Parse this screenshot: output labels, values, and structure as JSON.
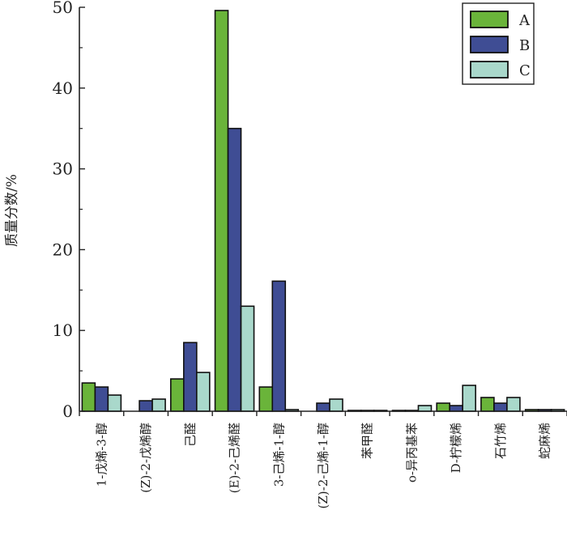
{
  "chart_data": {
    "type": "bar",
    "ylabel": "质量分数/%",
    "ylim": [
      0,
      50
    ],
    "yticks": [
      0,
      10,
      20,
      30,
      40,
      50
    ],
    "legend_position": "top-right",
    "categories": [
      "1-戊烯-3-醇",
      "(Z)-2-戊烯醇",
      "己醛",
      "(E)-2-己烯醛",
      "3-己烯-1-醇",
      "(Z)-2-己烯-1-醇",
      "苯甲醛",
      "o-异丙基苯",
      "D-柠檬烯",
      "石竹烯",
      "蛇麻烯"
    ],
    "series": [
      {
        "name": "A",
        "color": "#6ab43a",
        "values": [
          3.5,
          0,
          4.0,
          49.6,
          3.0,
          0,
          0.1,
          0.1,
          1.0,
          1.7,
          0.2
        ]
      },
      {
        "name": "B",
        "color": "#3f4d94",
        "values": [
          3.0,
          1.3,
          8.5,
          35.0,
          16.1,
          1.0,
          0.1,
          0.1,
          0.7,
          1.0,
          0.2
        ]
      },
      {
        "name": "C",
        "color": "#a9d8cb",
        "values": [
          2.0,
          1.5,
          4.8,
          13.0,
          0.2,
          1.5,
          0.1,
          0.7,
          3.2,
          1.7,
          0.2
        ]
      }
    ]
  }
}
